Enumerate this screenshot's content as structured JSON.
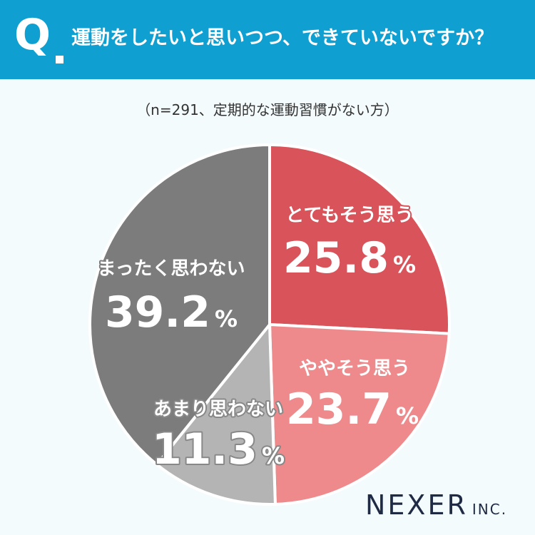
{
  "header": {
    "q_mark": "Q",
    "title": "運動をしたいと思いつつ、できていないですか？"
  },
  "sample_note": "（n=291、定期的な運動習慣がない方）",
  "logo": {
    "name": "NEXER",
    "suffix": "INC."
  },
  "chart_data": {
    "type": "pie",
    "title": "運動をしたいと思いつつ、できていないですか？",
    "unit": "%",
    "start": "12 o'clock",
    "direction": "clockwise",
    "slices": [
      {
        "label": "とてもそう思う",
        "value": 25.8,
        "value_text": "25.8",
        "color": "#d9535a",
        "label_color": "#ffffff",
        "outline": "#d9535a"
      },
      {
        "label": "ややそう思う",
        "value": 23.7,
        "value_text": "23.7",
        "color": "#ee8a8c",
        "label_color": "#ffffff",
        "outline": "#ee8a8c"
      },
      {
        "label": "あまり思わない",
        "value": 11.3,
        "value_text": "11.3",
        "color": "#b4b4b4",
        "label_color": "#ffffff",
        "outline": "#888888"
      },
      {
        "label": "まったく思わない",
        "value": 39.2,
        "value_text": "39.2",
        "color": "#7c7c7c",
        "label_color": "#ffffff",
        "outline": "#7c7c7c"
      }
    ]
  }
}
